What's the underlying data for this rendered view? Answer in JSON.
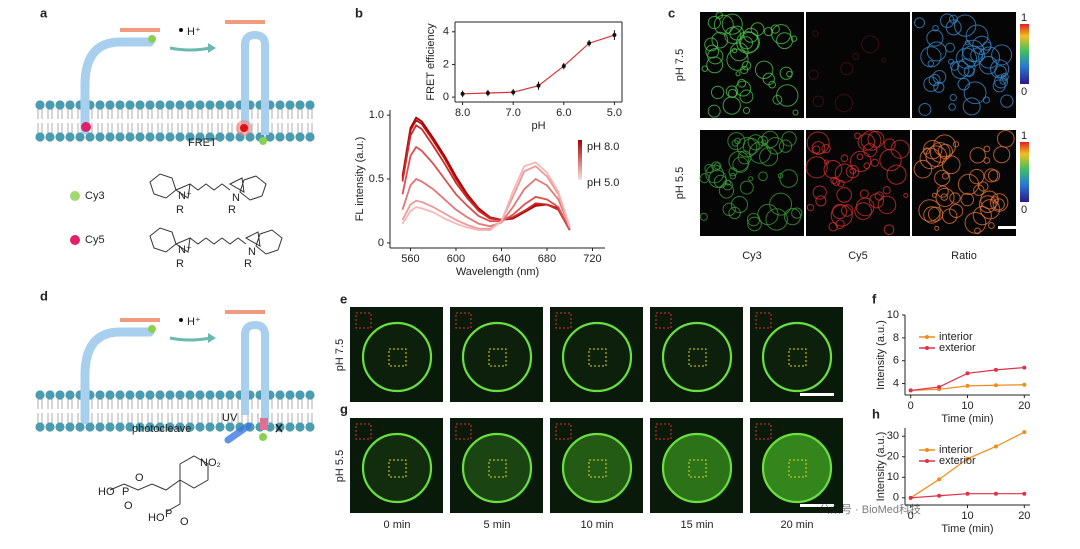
{
  "panel_labels": [
    "a",
    "b",
    "c",
    "d",
    "e",
    "f",
    "g",
    "h"
  ],
  "panel_a": {
    "h_plus": "H⁺",
    "fret": "FRET",
    "cy3": "Cy3",
    "cy5": "Cy5",
    "structure_labels": [
      "N⁺",
      "R",
      "N",
      "R"
    ]
  },
  "panel_c": {
    "rows": [
      "pH 7.5",
      "pH 5.5"
    ],
    "columns": [
      "Cy3",
      "Cy5",
      "Ratio"
    ],
    "colorbar": [
      "1",
      "0"
    ]
  },
  "panel_d": {
    "h_plus": "H⁺",
    "uv": "UV",
    "photocleave": "photocleave",
    "structure_labels": [
      "NO₂",
      "HO",
      "P",
      "O",
      "O",
      "HO",
      "P",
      "O"
    ]
  },
  "panel_e": {
    "rows": [
      "pH 7.5",
      "pH 5.5"
    ],
    "times": [
      "0 min",
      "5 min",
      "10 min",
      "15 min",
      "20 min"
    ]
  },
  "watermark": "公众号 · BioMed科技",
  "chart_data": [
    {
      "type": "line",
      "xlabel": "pH",
      "ylabel": "FRET efficiency",
      "x": [
        8.0,
        7.5,
        7.0,
        6.5,
        6.0,
        5.5,
        5.0
      ],
      "series": [
        {
          "color": "#e03030",
          "values": [
            0.2,
            0.25,
            0.3,
            0.7,
            1.9,
            3.3,
            3.8
          ],
          "errors": [
            0.2,
            0.2,
            0.2,
            0.25,
            0.2,
            0.2,
            0.3
          ]
        }
      ],
      "xlim": [
        8.15,
        4.85
      ],
      "xticks": [
        {
          "value": 8,
          "label": "8.0"
        },
        {
          "value": 7,
          "label": "7.0"
        },
        {
          "value": 6,
          "label": "6.0"
        },
        {
          "value": 5,
          "label": "5.0"
        }
      ],
      "ylim": [
        -0.3,
        4.6
      ],
      "yticks": [
        0,
        2,
        4
      ]
    },
    {
      "type": "line",
      "xlabel": "Wavelength (nm)",
      "ylabel": "FL intensity (a.u.)",
      "x": [
        553,
        560,
        565,
        570,
        580,
        590,
        600,
        610,
        620,
        630,
        640,
        650,
        660,
        670,
        680,
        690,
        700
      ],
      "series": [
        {
          "color": "#a80000",
          "values": [
            0.52,
            0.9,
            0.98,
            0.95,
            0.82,
            0.68,
            0.52,
            0.38,
            0.27,
            0.2,
            0.18,
            0.19,
            0.24,
            0.29,
            0.3,
            0.27,
            0.1
          ]
        },
        {
          "color": "#bb1010",
          "values": [
            0.5,
            0.88,
            0.96,
            0.93,
            0.8,
            0.66,
            0.5,
            0.37,
            0.26,
            0.2,
            0.18,
            0.2,
            0.25,
            0.3,
            0.3,
            0.26,
            0.1
          ]
        },
        {
          "color": "#cc2a2a",
          "values": [
            0.48,
            0.84,
            0.92,
            0.89,
            0.76,
            0.62,
            0.47,
            0.35,
            0.25,
            0.19,
            0.18,
            0.2,
            0.25,
            0.31,
            0.3,
            0.26,
            0.1
          ]
        },
        {
          "color": "#da5050",
          "values": [
            0.38,
            0.68,
            0.75,
            0.72,
            0.62,
            0.5,
            0.38,
            0.29,
            0.21,
            0.17,
            0.17,
            0.22,
            0.3,
            0.36,
            0.34,
            0.28,
            0.1
          ]
        },
        {
          "color": "#e57676",
          "values": [
            0.26,
            0.45,
            0.5,
            0.48,
            0.42,
            0.34,
            0.26,
            0.2,
            0.15,
            0.13,
            0.16,
            0.28,
            0.42,
            0.5,
            0.45,
            0.34,
            0.12
          ]
        },
        {
          "color": "#ee9a9a",
          "values": [
            0.18,
            0.3,
            0.33,
            0.32,
            0.28,
            0.23,
            0.18,
            0.14,
            0.11,
            0.11,
            0.17,
            0.36,
            0.56,
            0.6,
            0.52,
            0.38,
            0.12
          ]
        },
        {
          "color": "#f5b8b8",
          "values": [
            0.15,
            0.25,
            0.28,
            0.27,
            0.24,
            0.19,
            0.15,
            0.12,
            0.1,
            0.1,
            0.17,
            0.4,
            0.6,
            0.63,
            0.55,
            0.4,
            0.13
          ]
        }
      ],
      "legend_labels": [
        "pH 8.0",
        "pH 5.0"
      ],
      "xlim": [
        542,
        731
      ],
      "xticks": [
        560,
        600,
        640,
        680,
        720
      ],
      "ylim": [
        -0.04,
        1.04
      ],
      "yticks": [
        0,
        {
          "value": 0.5,
          "label": "0.5"
        },
        {
          "value": 1,
          "label": "1.0"
        }
      ]
    },
    {
      "type": "line",
      "xlabel": "Time (min)",
      "ylabel": "Intensity (a.u.)",
      "x": [
        0,
        5,
        10,
        15,
        20
      ],
      "series": [
        {
          "name": "interior",
          "color": "#f08c1e",
          "values": [
            3.4,
            3.5,
            3.8,
            3.85,
            3.9
          ]
        },
        {
          "name": "exterior",
          "color": "#e0304a",
          "values": [
            3.4,
            3.7,
            4.9,
            5.2,
            5.4
          ]
        }
      ],
      "xlim": [
        -1,
        21
      ],
      "xticks": [
        0,
        10,
        20
      ],
      "ylim": [
        3,
        10
      ],
      "yticks": [
        4,
        6,
        8,
        10
      ]
    },
    {
      "type": "line",
      "xlabel": "Time (min)",
      "ylabel": "Intensity (a.u.)",
      "x": [
        0,
        5,
        10,
        15,
        20
      ],
      "series": [
        {
          "name": "interior",
          "color": "#f08c1e",
          "values": [
            0,
            9,
            19,
            25,
            32
          ]
        },
        {
          "name": "exterior",
          "color": "#e0304a",
          "values": [
            0,
            1,
            2,
            2,
            2
          ]
        }
      ],
      "xlim": [
        -1,
        21
      ],
      "xticks": [
        0,
        10,
        20
      ],
      "ylim": [
        -3.5,
        34
      ],
      "yticks": [
        0,
        10,
        20,
        30
      ]
    }
  ]
}
